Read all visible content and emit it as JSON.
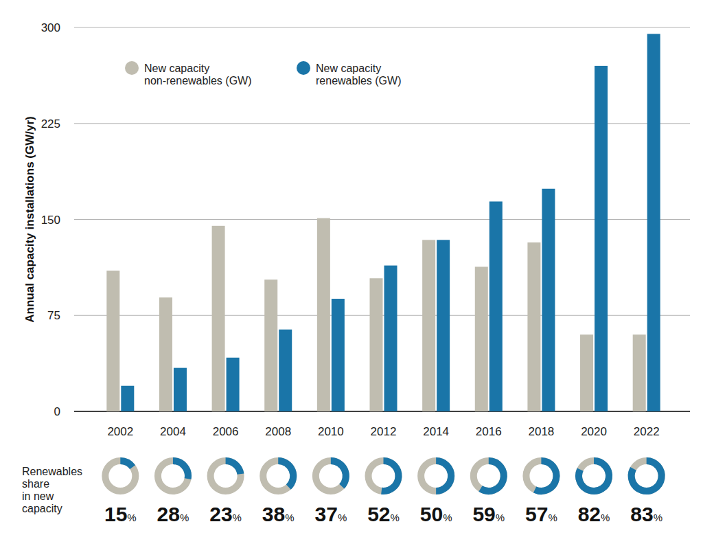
{
  "chart_data": {
    "type": "bar",
    "y_label": "Annual capacity installations (GW/yr)",
    "categories": [
      "2002",
      "2004",
      "2006",
      "2008",
      "2010",
      "2012",
      "2014",
      "2016",
      "2018",
      "2020",
      "2022"
    ],
    "series": [
      {
        "name": "New capacity non-renewables (GW)",
        "color": "#c0bdb0",
        "values": [
          110,
          89,
          145,
          103,
          151,
          104,
          134,
          113,
          132,
          60,
          60
        ]
      },
      {
        "name": "New capacity renewables (GW)",
        "color": "#1a75a8",
        "values": [
          20,
          34,
          42,
          64,
          88,
          114,
          134,
          164,
          174,
          270,
          295
        ]
      }
    ],
    "ylim": [
      0,
      300
    ],
    "yticks": [
      0,
      75,
      150,
      225,
      300
    ],
    "grid": true,
    "legend": "top-left",
    "shares": {
      "label": [
        "Renewables",
        "share",
        "in new",
        "capacity"
      ],
      "values": [
        15,
        28,
        23,
        38,
        37,
        52,
        50,
        59,
        57,
        82,
        83
      ],
      "value_labels": [
        "15%",
        "28%",
        "23%",
        "38%",
        "37%",
        "52%",
        "50%",
        "59%",
        "57%",
        "82%",
        "83%"
      ]
    }
  }
}
